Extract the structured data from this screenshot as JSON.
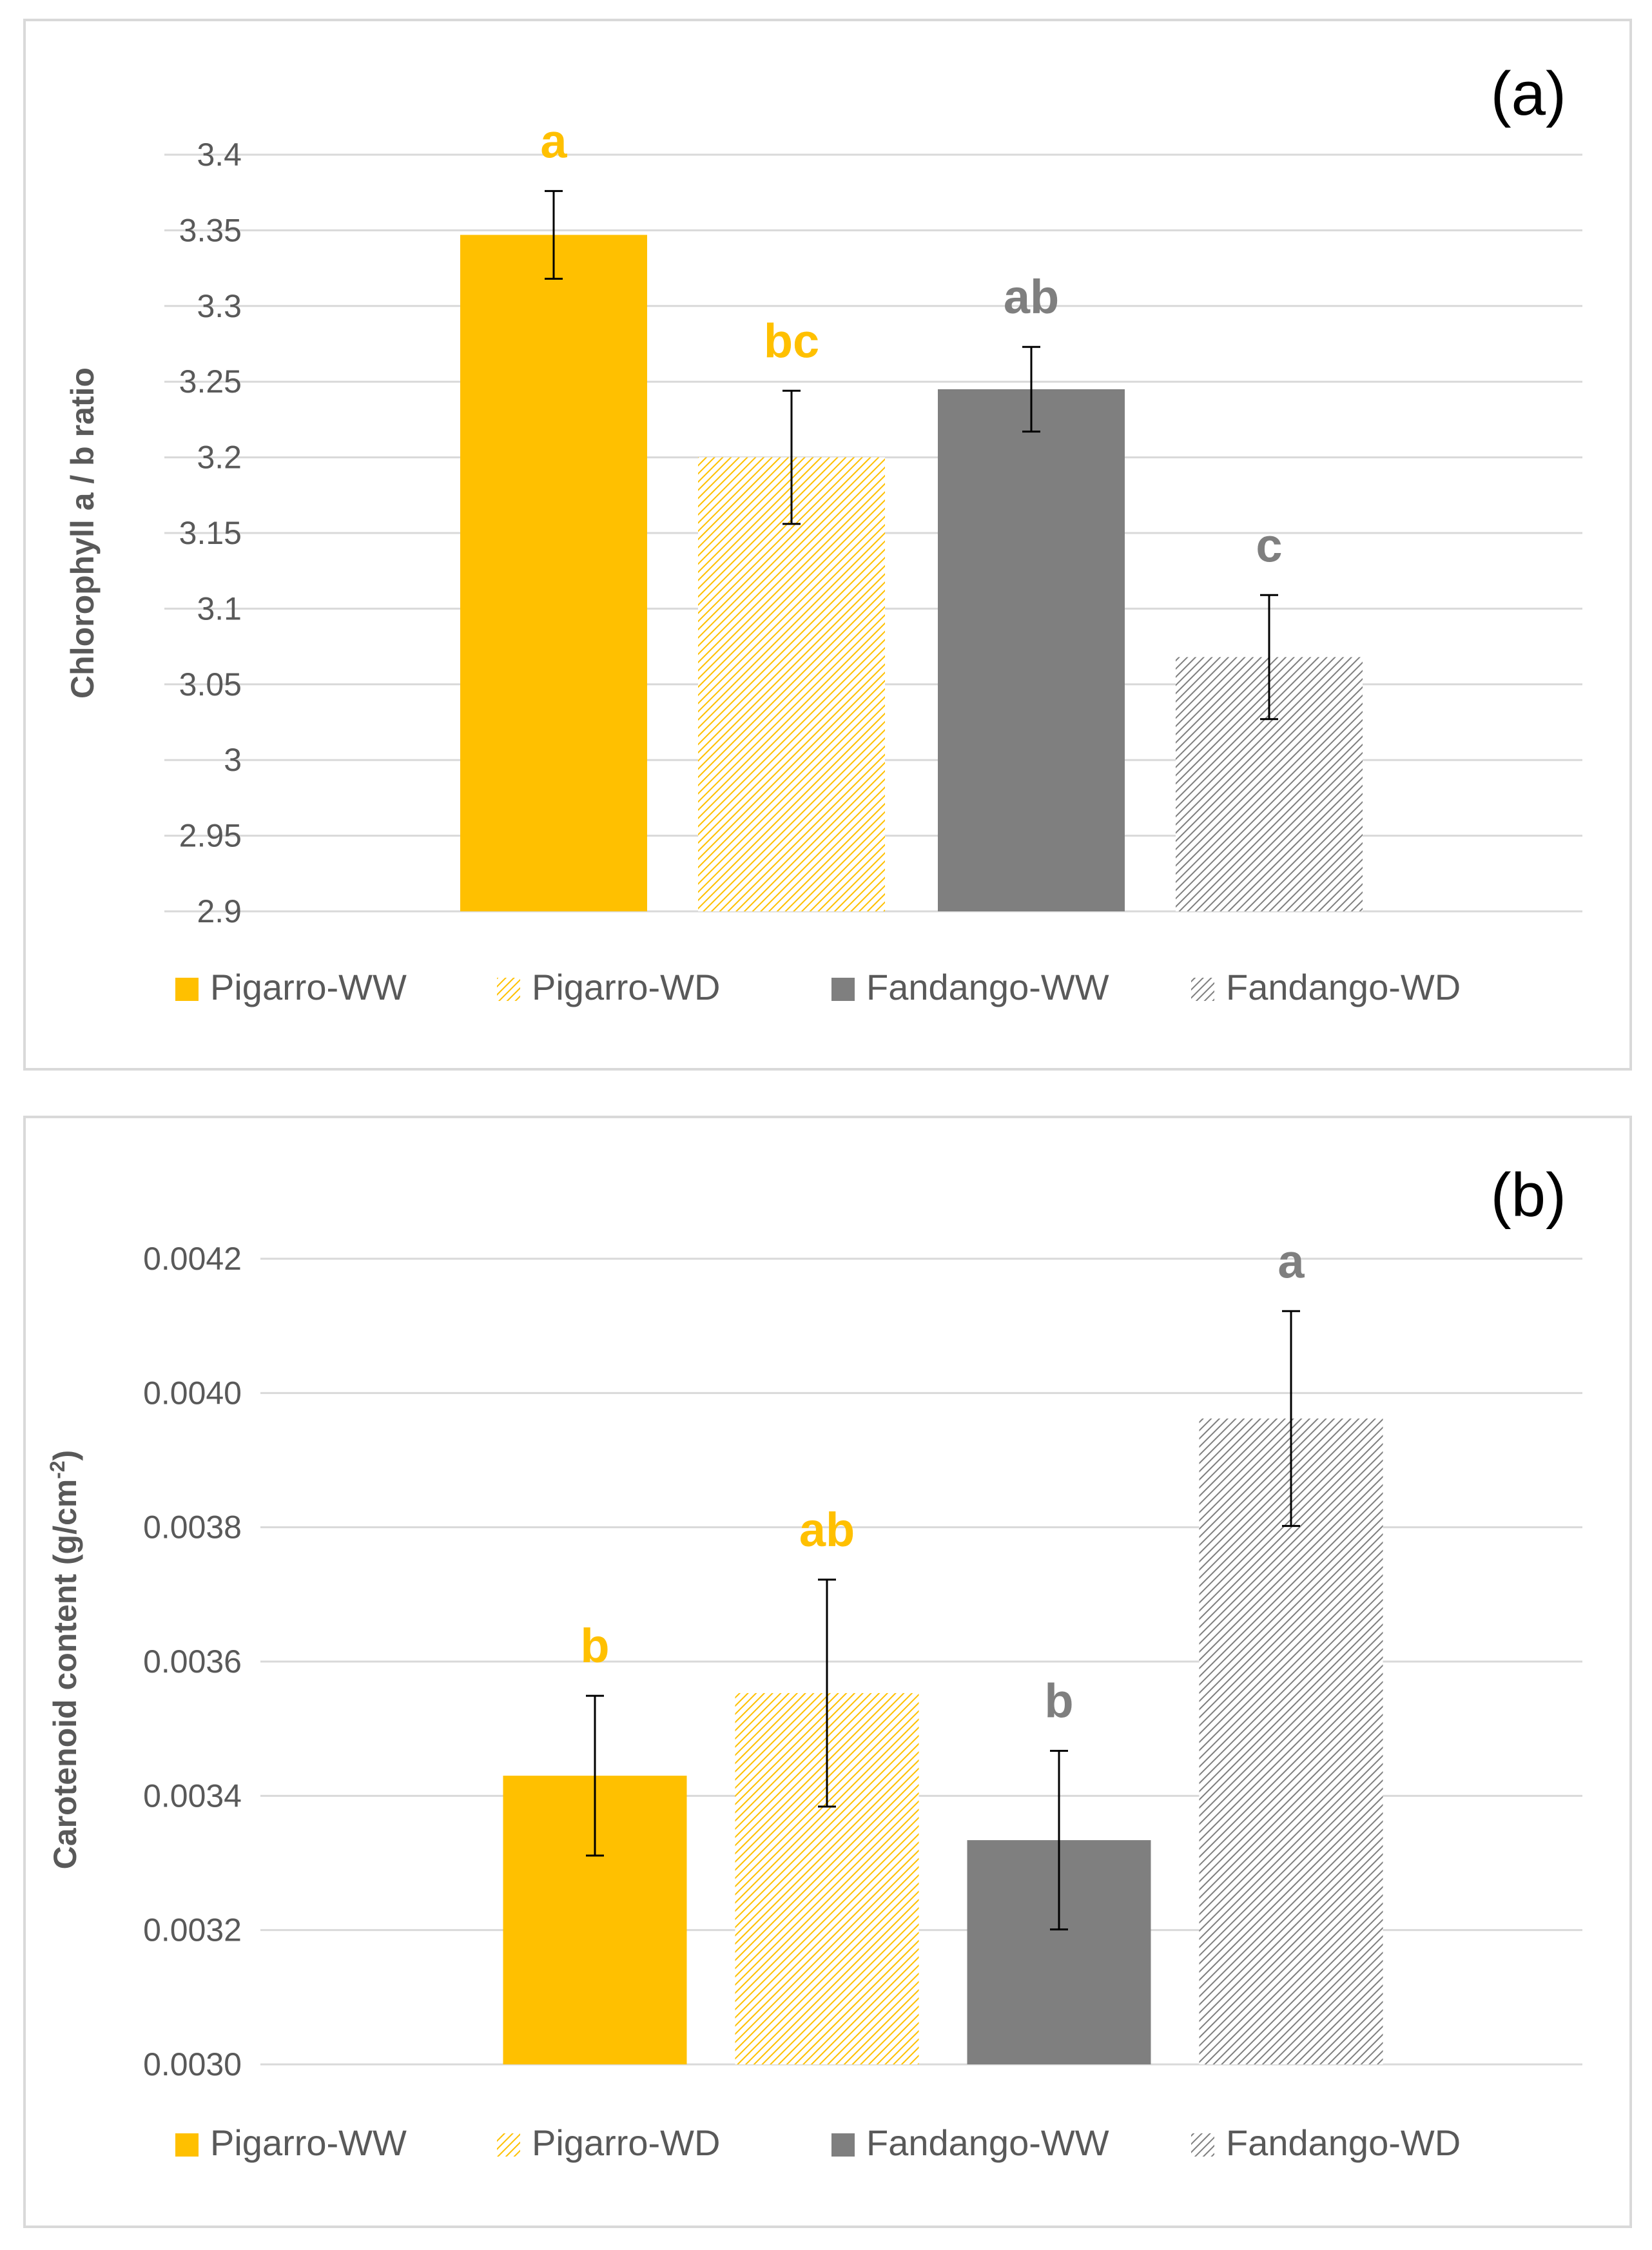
{
  "colors": {
    "pigarro": "#FFC000",
    "fandango": "#7F7F7F",
    "gridline": "#d9d9d9",
    "tick_text": "#595959",
    "axis_title": "#595959",
    "error_bar": "#000000",
    "panel_label": "#000000"
  },
  "chart_data": [
    {
      "type": "bar",
      "panel_label": "(a)",
      "title": "",
      "xlabel": "",
      "ylabel": "Chlorophyll a / b ratio",
      "ylim": [
        2.9,
        3.4
      ],
      "ytick_labels": [
        "2.9",
        "2.95",
        "3",
        "3.05",
        "3.1",
        "3.15",
        "3.2",
        "3.25",
        "3.3",
        "3.35",
        "3.4"
      ],
      "grid": true,
      "legend_position": "bottom",
      "series": [
        {
          "name": "Pigarro-WW",
          "value": 3.347,
          "error": 0.029,
          "letter": "a",
          "color_key": "pigarro",
          "hatched": false
        },
        {
          "name": "Pigarro-WD",
          "value": 3.2,
          "error": 0.044,
          "letter": "bc",
          "color_key": "pigarro",
          "hatched": true
        },
        {
          "name": "Fandango-WW",
          "value": 3.245,
          "error": 0.028,
          "letter": "ab",
          "color_key": "fandango",
          "hatched": false
        },
        {
          "name": "Fandango-WD",
          "value": 3.068,
          "error": 0.041,
          "letter": "c",
          "color_key": "fandango",
          "hatched": true
        }
      ]
    },
    {
      "type": "bar",
      "panel_label": "(b)",
      "title": "",
      "xlabel": "",
      "ylabel": "Carotenoid content (g/cm",
      "ylabel_superscript": "-2",
      "ylabel_suffix": ")",
      "ylim": [
        0.003,
        0.0042
      ],
      "ytick_labels": [
        "0.0030",
        "0.0032",
        "0.0034",
        "0.0036",
        "0.0038",
        "0.0040",
        "0.0042"
      ],
      "grid": true,
      "legend_position": "bottom",
      "series": [
        {
          "name": "Pigarro-WW",
          "value": 0.00343,
          "error": 0.000119,
          "letter": "b",
          "color_key": "pigarro",
          "hatched": false
        },
        {
          "name": "Pigarro-WD",
          "value": 0.003553,
          "error": 0.000169,
          "letter": "ab",
          "color_key": "pigarro",
          "hatched": true
        },
        {
          "name": "Fandango-WW",
          "value": 0.003334,
          "error": 0.000133,
          "letter": "b",
          "color_key": "fandango",
          "hatched": false
        },
        {
          "name": "Fandango-WD",
          "value": 0.003962,
          "error": 0.00016,
          "letter": "a",
          "color_key": "fandango",
          "hatched": true
        }
      ]
    }
  ]
}
